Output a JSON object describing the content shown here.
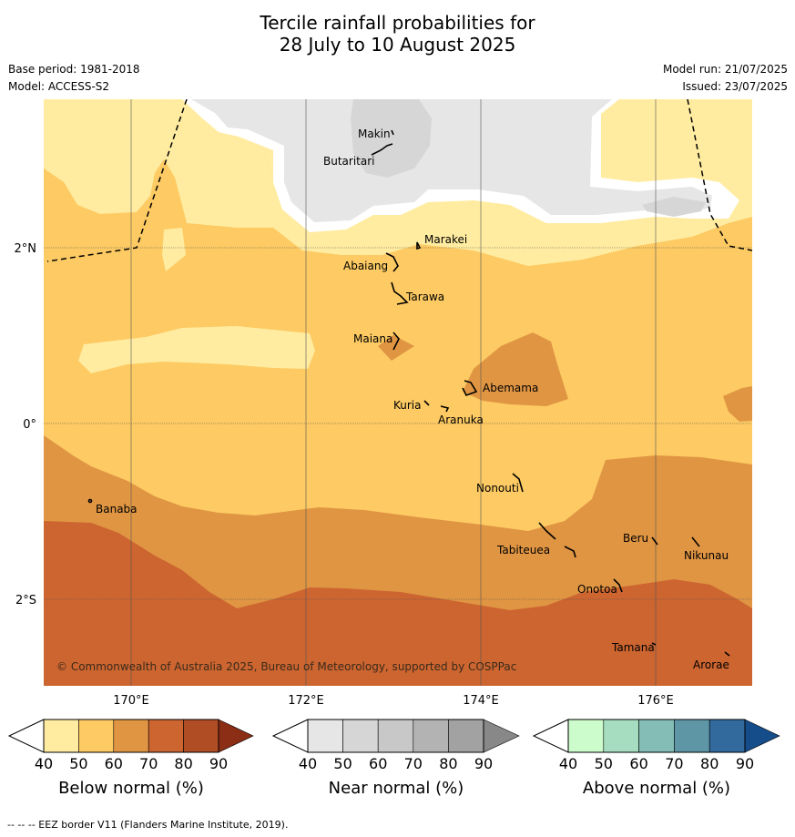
{
  "title_line1": "Tercile rainfall probabilities for",
  "title_line2": "28 July to 10 August 2025",
  "base_period": "Base period: 1981-2018",
  "model": "Model: ACCESS-S2",
  "model_run": "Model run: 21/07/2025",
  "issued": "Issued: 23/07/2025",
  "copyright": "© Commonwealth of Australia 2025, Bureau of Meteorology, supported by COSPPac",
  "footer": "-- -- -- EEZ border V11 (Flanders Marine Institute, 2019).",
  "map": {
    "lat_labels": [
      "2°N",
      "0°",
      "2°S"
    ],
    "lon_labels": [
      "170°E",
      "172°E",
      "174°E",
      "176°E"
    ],
    "places": [
      "Makin",
      "Butaritari",
      "Marakei",
      "Abaiang",
      "Tarawa",
      "Maiana",
      "Abemama",
      "Kuria",
      "Aranuka",
      "Nonouti",
      "Banaba",
      "Tabiteuea",
      "Beru",
      "Nikunau",
      "Onotoa",
      "Tamana",
      "Arorae"
    ]
  },
  "colorbars": [
    {
      "label": "Below normal (%)",
      "ticks": [
        "40",
        "50",
        "60",
        "70",
        "80",
        "90"
      ],
      "colors": [
        "#ffeca0",
        "#fdca63",
        "#e09543",
        "#cc6530",
        "#b04d25",
        "#8c2e16"
      ]
    },
    {
      "label": "Near normal (%)",
      "ticks": [
        "40",
        "50",
        "60",
        "70",
        "80",
        "90"
      ],
      "colors": [
        "#e6e6e6",
        "#d6d6d6",
        "#c8c8c8",
        "#b3b3b3",
        "#a2a2a2",
        "#888888"
      ]
    },
    {
      "label": "Above normal (%)",
      "ticks": [
        "40",
        "50",
        "60",
        "70",
        "80",
        "90"
      ],
      "colors": [
        "#ccfccc",
        "#a6dcbf",
        "#83bdb6",
        "#5e96a6",
        "#326a9e",
        "#154c8a"
      ]
    }
  ]
}
